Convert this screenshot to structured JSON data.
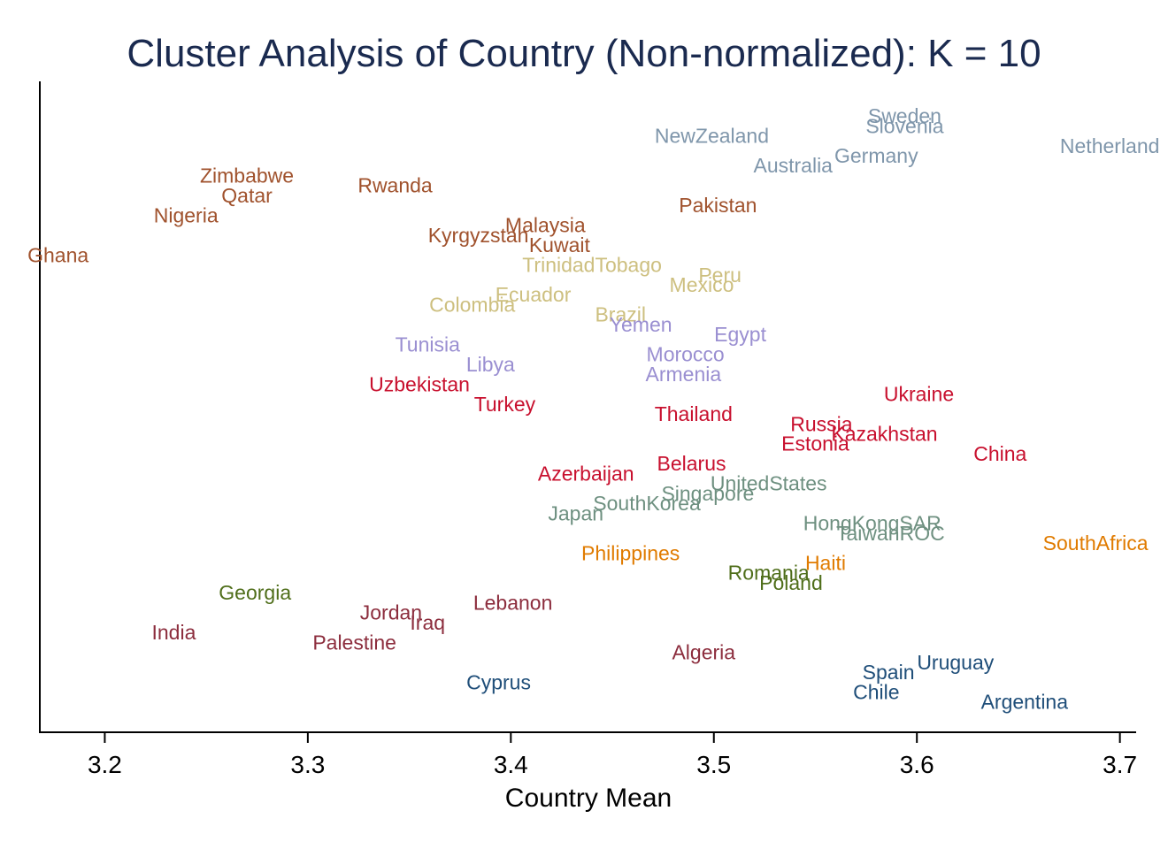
{
  "chart_data": {
    "type": "scatter",
    "title": "Cluster Analysis of Country (Non-normalized): K = 10",
    "xlabel": "Country Mean",
    "ylabel": "",
    "xlim": [
      3.168,
      3.708
    ],
    "ylim": [
      0,
      1
    ],
    "x_ticks": [
      "3.2",
      "3.3",
      "3.4",
      "3.5",
      "3.6",
      "3.7"
    ],
    "x_tick_values": [
      3.2,
      3.3,
      3.4,
      3.5,
      3.6,
      3.7
    ],
    "grid": false,
    "clusters": [
      {
        "color": "#a0522d",
        "points": [
          {
            "label": "Zimbabwe",
            "x": 3.27,
            "y": 0.874
          },
          {
            "label": "Qatar",
            "x": 3.27,
            "y": 0.842
          },
          {
            "label": "Nigeria",
            "x": 3.24,
            "y": 0.81
          },
          {
            "label": "Rwanda",
            "x": 3.343,
            "y": 0.858
          },
          {
            "label": "Ghana",
            "x": 3.177,
            "y": 0.746
          },
          {
            "label": "Kyrgyzstan",
            "x": 3.384,
            "y": 0.778
          },
          {
            "label": "Malaysia",
            "x": 3.417,
            "y": 0.794
          },
          {
            "label": "Kuwait",
            "x": 3.424,
            "y": 0.762
          },
          {
            "label": "Pakistan",
            "x": 3.502,
            "y": 0.826
          }
        ]
      },
      {
        "color": "#7f96ab",
        "points": [
          {
            "label": "Sweden",
            "x": 3.594,
            "y": 0.97
          },
          {
            "label": "Slovenia",
            "x": 3.594,
            "y": 0.954
          },
          {
            "label": "NewZealand",
            "x": 3.499,
            "y": 0.938
          },
          {
            "label": "Germany",
            "x": 3.58,
            "y": 0.906
          },
          {
            "label": "Australia",
            "x": 3.539,
            "y": 0.89
          },
          {
            "label": "Netherland",
            "x": 3.695,
            "y": 0.922
          }
        ]
      },
      {
        "color": "#cdbf7f",
        "points": [
          {
            "label": "TrinidadTobago",
            "x": 3.44,
            "y": 0.73
          },
          {
            "label": "Peru",
            "x": 3.503,
            "y": 0.714
          },
          {
            "label": "Mexico",
            "x": 3.494,
            "y": 0.698
          },
          {
            "label": "Ecuador",
            "x": 3.411,
            "y": 0.682
          },
          {
            "label": "Colombia",
            "x": 3.381,
            "y": 0.666
          },
          {
            "label": "Brazil",
            "x": 3.454,
            "y": 0.65
          }
        ]
      },
      {
        "color": "#9a8fd1",
        "points": [
          {
            "label": "Yemen",
            "x": 3.464,
            "y": 0.634
          },
          {
            "label": "Egypt",
            "x": 3.513,
            "y": 0.618
          },
          {
            "label": "Tunisia",
            "x": 3.359,
            "y": 0.602
          },
          {
            "label": "Morocco",
            "x": 3.486,
            "y": 0.586
          },
          {
            "label": "Libya",
            "x": 3.39,
            "y": 0.57
          },
          {
            "label": "Armenia",
            "x": 3.485,
            "y": 0.554
          }
        ]
      },
      {
        "color": "#c8102e",
        "points": [
          {
            "label": "Uzbekistan",
            "x": 3.355,
            "y": 0.538
          },
          {
            "label": "Ukraine",
            "x": 3.601,
            "y": 0.522
          },
          {
            "label": "Turkey",
            "x": 3.397,
            "y": 0.506
          },
          {
            "label": "Thailand",
            "x": 3.49,
            "y": 0.49
          },
          {
            "label": "Russia",
            "x": 3.553,
            "y": 0.474
          },
          {
            "label": "Kazakhstan",
            "x": 3.584,
            "y": 0.458
          },
          {
            "label": "Estonia",
            "x": 3.55,
            "y": 0.442
          },
          {
            "label": "China",
            "x": 3.641,
            "y": 0.426
          },
          {
            "label": "Belarus",
            "x": 3.489,
            "y": 0.41
          },
          {
            "label": "Azerbaijan",
            "x": 3.437,
            "y": 0.394
          }
        ]
      },
      {
        "color": "#6e9080",
        "points": [
          {
            "label": "UnitedStates",
            "x": 3.527,
            "y": 0.378
          },
          {
            "label": "Singapore",
            "x": 3.497,
            "y": 0.362
          },
          {
            "label": "SouthKorea",
            "x": 3.467,
            "y": 0.346
          },
          {
            "label": "Japan",
            "x": 3.432,
            "y": 0.33
          },
          {
            "label": "HongKongSAR",
            "x": 3.578,
            "y": 0.314
          },
          {
            "label": "TaiwanROC",
            "x": 3.587,
            "y": 0.298
          }
        ]
      },
      {
        "color": "#e07b00",
        "points": [
          {
            "label": "SouthAfrica",
            "x": 3.688,
            "y": 0.282
          },
          {
            "label": "Philippines",
            "x": 3.459,
            "y": 0.266
          },
          {
            "label": "Haiti",
            "x": 3.555,
            "y": 0.25
          }
        ]
      },
      {
        "color": "#4f6e1a",
        "points": [
          {
            "label": "Romania",
            "x": 3.527,
            "y": 0.234
          },
          {
            "label": "Poland",
            "x": 3.538,
            "y": 0.218
          },
          {
            "label": "Georgia",
            "x": 3.274,
            "y": 0.202
          }
        ]
      },
      {
        "color": "#8c2d3d",
        "points": [
          {
            "label": "Lebanon",
            "x": 3.401,
            "y": 0.186
          },
          {
            "label": "Jordan",
            "x": 3.341,
            "y": 0.17
          },
          {
            "label": "Iraq",
            "x": 3.359,
            "y": 0.154
          },
          {
            "label": "India",
            "x": 3.234,
            "y": 0.138
          },
          {
            "label": "Palestine",
            "x": 3.323,
            "y": 0.122
          },
          {
            "label": "Algeria",
            "x": 3.495,
            "y": 0.106
          }
        ]
      },
      {
        "color": "#1f4e79",
        "points": [
          {
            "label": "Uruguay",
            "x": 3.619,
            "y": 0.09
          },
          {
            "label": "Spain",
            "x": 3.586,
            "y": 0.074
          },
          {
            "label": "Cyprus",
            "x": 3.394,
            "y": 0.058
          },
          {
            "label": "Chile",
            "x": 3.58,
            "y": 0.042
          },
          {
            "label": "Argentina",
            "x": 3.653,
            "y": 0.026
          }
        ]
      }
    ]
  }
}
